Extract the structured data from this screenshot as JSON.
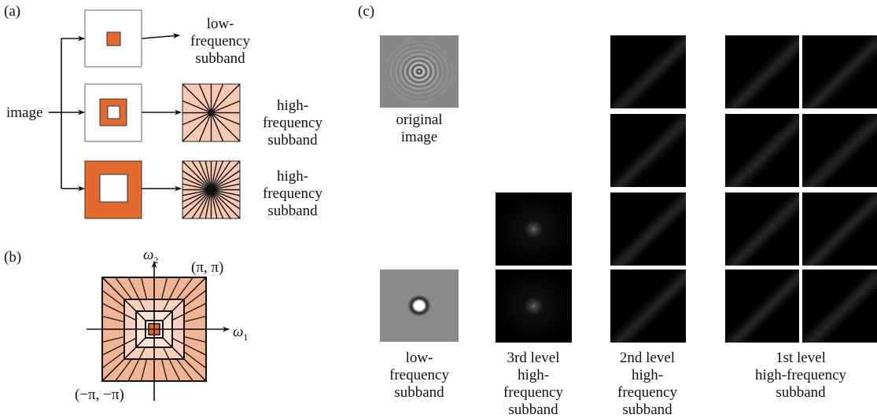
{
  "panel_a": {
    "label": "(a)",
    "input": "image",
    "outputs": [
      [
        "low-",
        "frequency",
        "subband"
      ],
      [
        "high-",
        "frequency",
        "subband"
      ],
      [
        "high-",
        "frequency",
        "subband"
      ]
    ]
  },
  "panel_b": {
    "label": "(b)",
    "axis_y": {
      "symbol": "ω",
      "subscript": "2"
    },
    "axis_x": {
      "symbol": "ω",
      "subscript": "1"
    },
    "corner_top": "(π, π)",
    "corner_bottom": "(−π, −π)"
  },
  "panel_c": {
    "label": "(c)",
    "captions": [
      [
        "original",
        "image"
      ],
      [
        "low-",
        "frequency",
        "subband"
      ],
      [
        "3rd level",
        "high-",
        "frequency",
        "subband"
      ],
      [
        "2nd level",
        "high-",
        "frequency",
        "subband"
      ],
      [
        "1st level",
        "high-frequency",
        "subband"
      ]
    ]
  }
}
